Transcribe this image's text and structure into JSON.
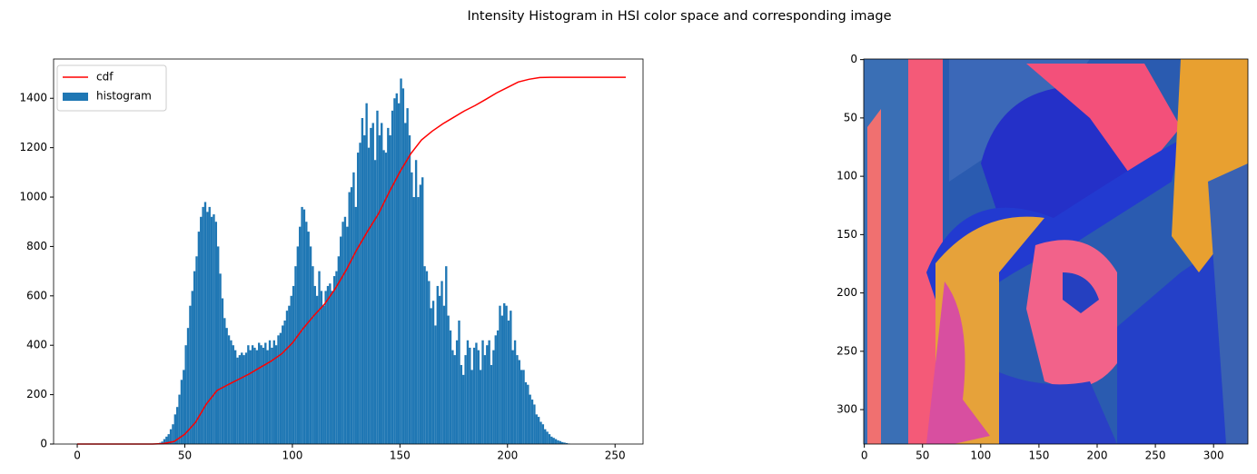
{
  "title": "Intensity Histogram in HSI color space and corresponding image",
  "chart_data": [
    {
      "type": "histogram",
      "bins": [
        0,
        1,
        2,
        3,
        4,
        5,
        6,
        7,
        8,
        9,
        10,
        11,
        12,
        13,
        14,
        15,
        16,
        17,
        18,
        19,
        20,
        21,
        22,
        23,
        24,
        25,
        26,
        27,
        28,
        29,
        30,
        31,
        32,
        33,
        34,
        35,
        36,
        37,
        38,
        39,
        40,
        41,
        42,
        43,
        44,
        45,
        46,
        47,
        48,
        49,
        50,
        51,
        52,
        53,
        54,
        55,
        56,
        57,
        58,
        59,
        60,
        61,
        62,
        63,
        64,
        65,
        66,
        67,
        68,
        69,
        70,
        71,
        72,
        73,
        74,
        75,
        76,
        77,
        78,
        79,
        80,
        81,
        82,
        83,
        84,
        85,
        86,
        87,
        88,
        89,
        90,
        91,
        92,
        93,
        94,
        95,
        96,
        97,
        98,
        99,
        100,
        101,
        102,
        103,
        104,
        105,
        106,
        107,
        108,
        109,
        110,
        111,
        112,
        113,
        114,
        115,
        116,
        117,
        118,
        119,
        120,
        121,
        122,
        123,
        124,
        125,
        126,
        127,
        128,
        129,
        130,
        131,
        132,
        133,
        134,
        135,
        136,
        137,
        138,
        139,
        140,
        141,
        142,
        143,
        144,
        145,
        146,
        147,
        148,
        149,
        150,
        151,
        152,
        153,
        154,
        155,
        156,
        157,
        158,
        159,
        160,
        161,
        162,
        163,
        164,
        165,
        166,
        167,
        168,
        169,
        170,
        171,
        172,
        173,
        174,
        175,
        176,
        177,
        178,
        179,
        180,
        181,
        182,
        183,
        184,
        185,
        186,
        187,
        188,
        189,
        190,
        191,
        192,
        193,
        194,
        195,
        196,
        197,
        198,
        199,
        200,
        201,
        202,
        203,
        204,
        205,
        206,
        207,
        208,
        209,
        210,
        211,
        212,
        213,
        214,
        215,
        216,
        217,
        218,
        219,
        220,
        221,
        222,
        223,
        224,
        225,
        226,
        227,
        228,
        229,
        230,
        231,
        232,
        233,
        234,
        235,
        236,
        237,
        238,
        239,
        240,
        241,
        242,
        243,
        244,
        245,
        246,
        247,
        248,
        249,
        250,
        251,
        252,
        253,
        254,
        255,
        256
      ],
      "series": [
        {
          "name": "histogram",
          "color": "#1f77b4",
          "values": [
            0,
            0,
            0,
            0,
            0,
            0,
            0,
            0,
            0,
            0,
            0,
            0,
            0,
            0,
            0,
            0,
            0,
            0,
            0,
            0,
            0,
            0,
            0,
            0,
            0,
            0,
            0,
            0,
            0,
            0,
            0,
            0,
            0,
            0,
            0,
            0,
            0,
            0,
            5,
            10,
            20,
            30,
            40,
            60,
            80,
            120,
            150,
            200,
            260,
            300,
            400,
            470,
            560,
            620,
            700,
            760,
            860,
            920,
            960,
            980,
            940,
            960,
            920,
            930,
            900,
            800,
            690,
            590,
            510,
            470,
            440,
            420,
            400,
            380,
            350,
            360,
            370,
            360,
            370,
            400,
            380,
            400,
            390,
            380,
            410,
            400,
            390,
            410,
            380,
            420,
            390,
            420,
            400,
            440,
            450,
            480,
            500,
            540,
            560,
            600,
            640,
            720,
            800,
            880,
            960,
            950,
            900,
            860,
            800,
            720,
            640,
            600,
            700,
            620,
            560,
            620,
            640,
            650,
            620,
            680,
            700,
            760,
            840,
            900,
            920,
            880,
            1020,
            1040,
            1100,
            960,
            1180,
            1220,
            1320,
            1250,
            1380,
            1200,
            1280,
            1300,
            1150,
            1350,
            1250,
            1300,
            1190,
            1180,
            1280,
            1250,
            1350,
            1400,
            1420,
            1380,
            1480,
            1440,
            1300,
            1360,
            1250,
            1100,
            1000,
            1150,
            1000,
            1050,
            1080,
            720,
            700,
            660,
            550,
            580,
            480,
            640,
            600,
            660,
            560,
            720,
            520,
            460,
            380,
            360,
            420,
            500,
            320,
            280,
            360,
            420,
            390,
            300,
            390,
            410,
            380,
            300,
            420,
            360,
            400,
            420,
            320,
            380,
            440,
            460,
            560,
            520,
            570,
            560,
            500,
            540,
            380,
            420,
            360,
            340,
            300,
            300,
            250,
            240,
            200,
            180,
            160,
            120,
            110,
            90,
            80,
            60,
            50,
            40,
            30,
            25,
            20,
            15,
            12,
            8,
            6,
            4,
            2,
            0,
            0,
            0,
            0,
            0,
            0,
            0,
            0,
            0,
            0,
            0,
            0,
            0,
            0,
            0,
            0,
            0,
            0,
            0,
            0,
            0,
            0,
            0,
            0,
            0,
            0,
            0
          ]
        }
      ],
      "lines": [
        {
          "name": "cdf",
          "color": "#ff0000",
          "x": [
            0,
            5,
            10,
            15,
            20,
            25,
            30,
            35,
            40,
            45,
            50,
            55,
            60,
            65,
            70,
            75,
            80,
            85,
            90,
            95,
            100,
            105,
            110,
            115,
            120,
            125,
            130,
            135,
            140,
            145,
            150,
            155,
            160,
            165,
            170,
            175,
            180,
            185,
            190,
            195,
            200,
            205,
            210,
            215,
            220,
            225,
            230,
            235,
            240,
            245,
            250,
            255
          ],
          "values": [
            0,
            0,
            0,
            0,
            0,
            0,
            0,
            0,
            2,
            10,
            40,
            88,
            162,
            217,
            240,
            262,
            284,
            310,
            335,
            365,
            409,
            468,
            520,
            567,
            630,
            704,
            788,
            862,
            932,
            1020,
            1102,
            1175,
            1231,
            1267,
            1297,
            1323,
            1349,
            1371,
            1396,
            1422,
            1444,
            1466,
            1477,
            1484,
            1485,
            1485,
            1485,
            1485,
            1485,
            1485,
            1485,
            1485
          ]
        }
      ],
      "xlim": [
        -11,
        263
      ],
      "ylim": [
        0,
        1559
      ],
      "xticks": [
        0,
        50,
        100,
        150,
        200,
        250
      ],
      "yticks": [
        0,
        200,
        400,
        600,
        800,
        1000,
        1200,
        1400
      ],
      "legend": "upper left"
    },
    {
      "type": "image",
      "xlim": [
        -0.5,
        329.5
      ],
      "ylim": [
        329.5,
        -0.5
      ],
      "xticks": [
        0,
        50,
        100,
        150,
        200,
        250,
        300
      ],
      "yticks": [
        0,
        50,
        100,
        150,
        200,
        250,
        300
      ]
    }
  ]
}
